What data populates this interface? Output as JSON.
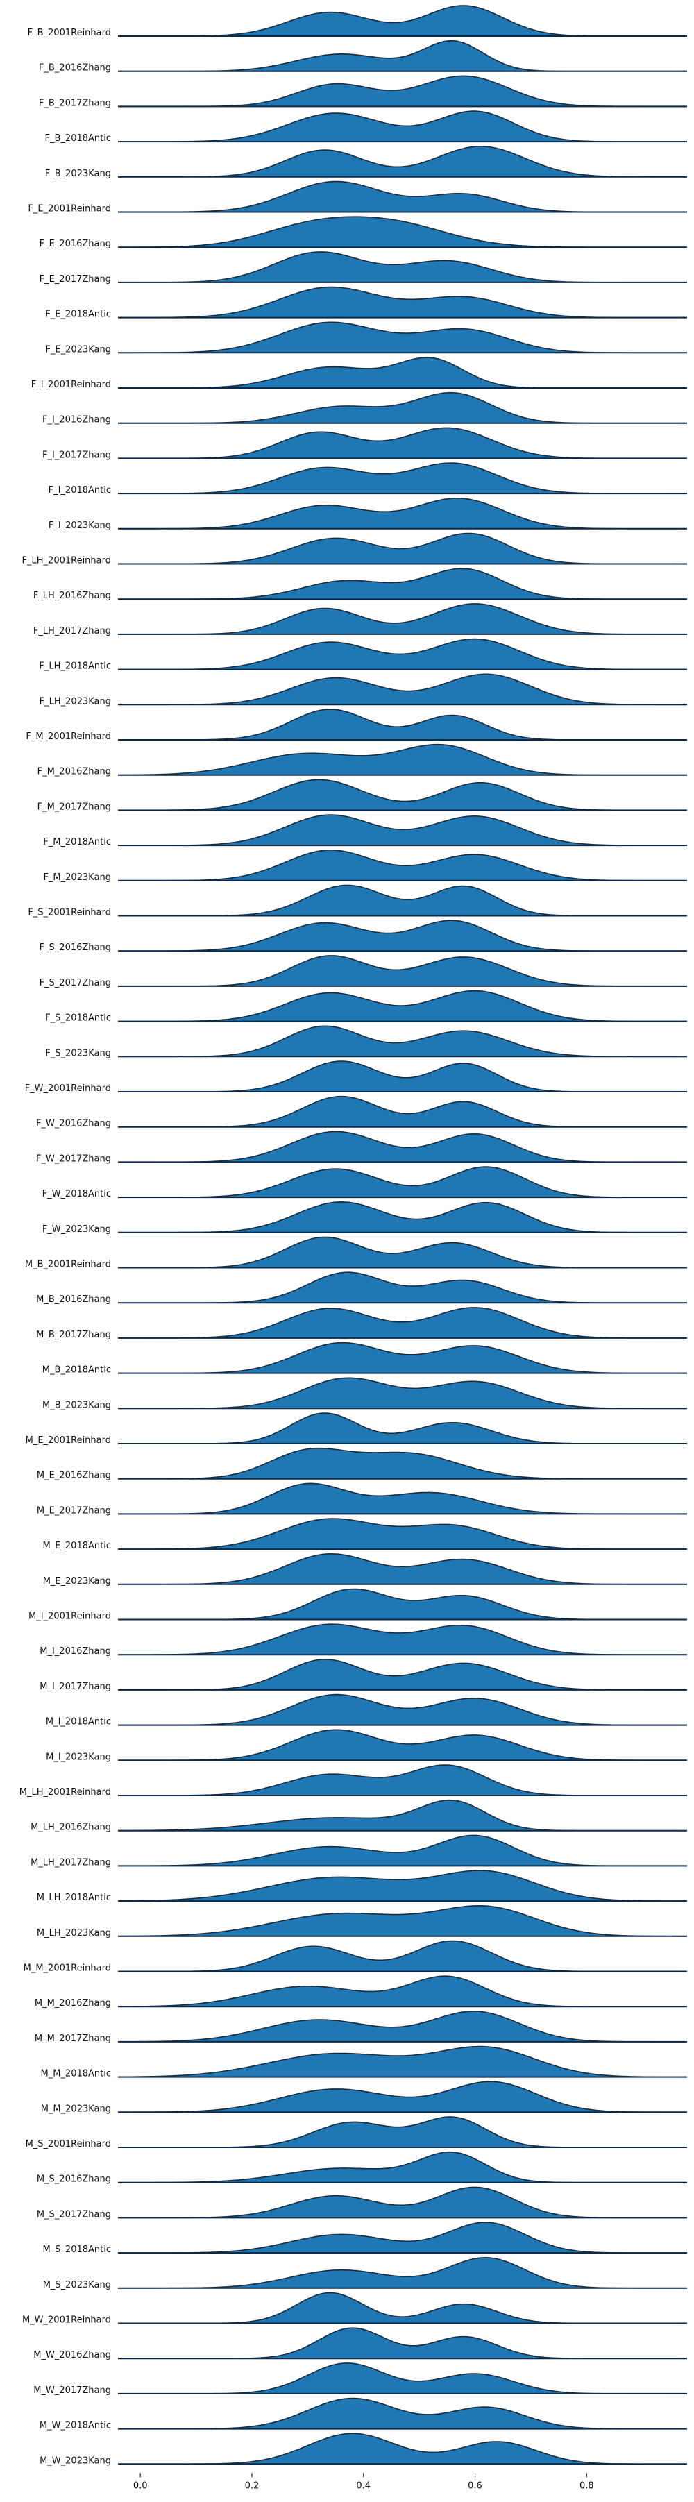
{
  "chart_data": {
    "type": "ridgeline",
    "xlim": [
      -0.04,
      0.98
    ],
    "x_ticks": [
      0.0,
      0.2,
      0.4,
      0.6,
      0.8
    ],
    "x_tick_labels": [
      "0.0",
      "0.2",
      "0.4",
      "0.6",
      "0.8"
    ],
    "grid": false,
    "colors": {
      "fill": "#1f77b4",
      "line": "#1c2b3a",
      "baseline": "#0b2a4a",
      "text": "#111111"
    },
    "series": [
      {
        "name": "F_B_2001Reinhard",
        "peaks": [
          [
            0.34,
            0.075,
            0.72
          ],
          [
            0.58,
            0.07,
            0.92
          ]
        ]
      },
      {
        "name": "F_B_2016Zhang",
        "peaks": [
          [
            0.36,
            0.08,
            0.55
          ],
          [
            0.56,
            0.055,
            0.95
          ]
        ]
      },
      {
        "name": "F_B_2017Zhang",
        "peaks": [
          [
            0.35,
            0.07,
            0.62
          ],
          [
            0.58,
            0.08,
            0.85
          ]
        ]
      },
      {
        "name": "F_B_2018Antic",
        "peaks": [
          [
            0.35,
            0.085,
            0.68
          ],
          [
            0.6,
            0.07,
            0.72
          ]
        ]
      },
      {
        "name": "F_B_2023Kang",
        "peaks": [
          [
            0.33,
            0.07,
            0.72
          ],
          [
            0.61,
            0.08,
            0.82
          ]
        ]
      },
      {
        "name": "F_E_2001Reinhard",
        "peaks": [
          [
            0.35,
            0.085,
            0.95
          ],
          [
            0.58,
            0.07,
            0.55
          ]
        ]
      },
      {
        "name": "F_E_2016Zhang",
        "peaks": [
          [
            0.3,
            0.09,
            0.55
          ],
          [
            0.45,
            0.1,
            0.7
          ]
        ]
      },
      {
        "name": "F_E_2017Zhang",
        "peaks": [
          [
            0.32,
            0.08,
            0.85
          ],
          [
            0.55,
            0.08,
            0.6
          ]
        ]
      },
      {
        "name": "F_E_2018Antic",
        "peaks": [
          [
            0.34,
            0.09,
            0.9
          ],
          [
            0.58,
            0.08,
            0.6
          ]
        ]
      },
      {
        "name": "F_E_2023Kang",
        "peaks": [
          [
            0.34,
            0.09,
            0.85
          ],
          [
            0.58,
            0.08,
            0.65
          ]
        ]
      },
      {
        "name": "F_I_2001Reinhard",
        "peaks": [
          [
            0.34,
            0.08,
            0.65
          ],
          [
            0.52,
            0.06,
            0.9
          ]
        ]
      },
      {
        "name": "F_I_2016Zhang",
        "peaks": [
          [
            0.36,
            0.08,
            0.5
          ],
          [
            0.56,
            0.07,
            0.9
          ]
        ]
      },
      {
        "name": "F_I_2017Zhang",
        "peaks": [
          [
            0.32,
            0.07,
            0.7
          ],
          [
            0.55,
            0.08,
            0.82
          ]
        ]
      },
      {
        "name": "F_I_2018Antic",
        "peaks": [
          [
            0.33,
            0.08,
            0.68
          ],
          [
            0.56,
            0.08,
            0.8
          ]
        ]
      },
      {
        "name": "F_I_2023Kang",
        "peaks": [
          [
            0.33,
            0.08,
            0.65
          ],
          [
            0.57,
            0.08,
            0.85
          ]
        ]
      },
      {
        "name": "F_LH_2001Reinhard",
        "peaks": [
          [
            0.35,
            0.08,
            0.72
          ],
          [
            0.59,
            0.07,
            0.85
          ]
        ]
      },
      {
        "name": "F_LH_2016Zhang",
        "peaks": [
          [
            0.37,
            0.08,
            0.55
          ],
          [
            0.58,
            0.07,
            0.9
          ]
        ]
      },
      {
        "name": "F_LH_2017Zhang",
        "peaks": [
          [
            0.33,
            0.07,
            0.72
          ],
          [
            0.6,
            0.08,
            0.85
          ]
        ]
      },
      {
        "name": "F_LH_2018Antic",
        "peaks": [
          [
            0.34,
            0.08,
            0.7
          ],
          [
            0.6,
            0.08,
            0.78
          ]
        ]
      },
      {
        "name": "F_LH_2023Kang",
        "peaks": [
          [
            0.35,
            0.08,
            0.72
          ],
          [
            0.62,
            0.08,
            0.82
          ]
        ]
      },
      {
        "name": "F_M_2001Reinhard",
        "peaks": [
          [
            0.34,
            0.07,
            0.9
          ],
          [
            0.56,
            0.06,
            0.72
          ]
        ]
      },
      {
        "name": "F_M_2016Zhang",
        "peaks": [
          [
            0.3,
            0.1,
            0.55
          ],
          [
            0.54,
            0.08,
            0.75
          ]
        ]
      },
      {
        "name": "F_M_2017Zhang",
        "peaks": [
          [
            0.32,
            0.08,
            0.8
          ],
          [
            0.61,
            0.07,
            0.72
          ]
        ]
      },
      {
        "name": "F_M_2018Antic",
        "peaks": [
          [
            0.34,
            0.08,
            0.75
          ],
          [
            0.6,
            0.08,
            0.72
          ]
        ]
      },
      {
        "name": "F_M_2023Kang",
        "peaks": [
          [
            0.34,
            0.08,
            0.82
          ],
          [
            0.6,
            0.08,
            0.7
          ]
        ]
      },
      {
        "name": "F_S_2001Reinhard",
        "peaks": [
          [
            0.37,
            0.07,
            0.88
          ],
          [
            0.58,
            0.06,
            0.85
          ]
        ]
      },
      {
        "name": "F_S_2016Zhang",
        "peaks": [
          [
            0.33,
            0.08,
            0.7
          ],
          [
            0.56,
            0.07,
            0.75
          ]
        ]
      },
      {
        "name": "F_S_2017Zhang",
        "peaks": [
          [
            0.34,
            0.07,
            0.78
          ],
          [
            0.58,
            0.08,
            0.75
          ]
        ]
      },
      {
        "name": "F_S_2018Antic",
        "peaks": [
          [
            0.34,
            0.08,
            0.7
          ],
          [
            0.6,
            0.08,
            0.75
          ]
        ]
      },
      {
        "name": "F_S_2023Kang",
        "peaks": [
          [
            0.33,
            0.07,
            0.85
          ],
          [
            0.58,
            0.08,
            0.72
          ]
        ]
      },
      {
        "name": "F_W_2001Reinhard",
        "peaks": [
          [
            0.36,
            0.07,
            0.92
          ],
          [
            0.58,
            0.06,
            0.85
          ]
        ]
      },
      {
        "name": "F_W_2016Zhang",
        "peaks": [
          [
            0.36,
            0.07,
            0.95
          ],
          [
            0.58,
            0.06,
            0.78
          ]
        ]
      },
      {
        "name": "F_W_2017Zhang",
        "peaks": [
          [
            0.35,
            0.08,
            0.85
          ],
          [
            0.6,
            0.07,
            0.78
          ]
        ]
      },
      {
        "name": "F_W_2018Antic",
        "peaks": [
          [
            0.35,
            0.08,
            0.7
          ],
          [
            0.62,
            0.07,
            0.75
          ]
        ]
      },
      {
        "name": "F_W_2023Kang",
        "peaks": [
          [
            0.36,
            0.08,
            0.8
          ],
          [
            0.62,
            0.07,
            0.78
          ]
        ]
      },
      {
        "name": "M_B_2001Reinhard",
        "peaks": [
          [
            0.33,
            0.07,
            0.92
          ],
          [
            0.56,
            0.07,
            0.75
          ]
        ]
      },
      {
        "name": "M_B_2016Zhang",
        "peaks": [
          [
            0.37,
            0.07,
            0.95
          ],
          [
            0.58,
            0.07,
            0.7
          ]
        ]
      },
      {
        "name": "M_B_2017Zhang",
        "peaks": [
          [
            0.34,
            0.08,
            0.7
          ],
          [
            0.6,
            0.08,
            0.72
          ]
        ]
      },
      {
        "name": "M_B_2018Antic",
        "peaks": [
          [
            0.36,
            0.08,
            0.8
          ],
          [
            0.6,
            0.08,
            0.72
          ]
        ]
      },
      {
        "name": "M_B_2023Kang",
        "peaks": [
          [
            0.37,
            0.08,
            0.85
          ],
          [
            0.6,
            0.08,
            0.75
          ]
        ]
      },
      {
        "name": "M_E_2001Reinhard",
        "peaks": [
          [
            0.33,
            0.06,
            0.9
          ],
          [
            0.56,
            0.07,
            0.62
          ]
        ]
      },
      {
        "name": "M_E_2016Zhang",
        "peaks": [
          [
            0.3,
            0.07,
            0.82
          ],
          [
            0.48,
            0.09,
            0.78
          ]
        ]
      },
      {
        "name": "M_E_2017Zhang",
        "peaks": [
          [
            0.3,
            0.07,
            0.9
          ],
          [
            0.52,
            0.09,
            0.65
          ]
        ]
      },
      {
        "name": "M_E_2018Antic",
        "peaks": [
          [
            0.34,
            0.09,
            0.85
          ],
          [
            0.56,
            0.08,
            0.65
          ]
        ]
      },
      {
        "name": "M_E_2023Kang",
        "peaks": [
          [
            0.34,
            0.08,
            0.88
          ],
          [
            0.58,
            0.08,
            0.72
          ]
        ]
      },
      {
        "name": "M_I_2001Reinhard",
        "peaks": [
          [
            0.38,
            0.07,
            0.92
          ],
          [
            0.58,
            0.07,
            0.72
          ]
        ]
      },
      {
        "name": "M_I_2016Zhang",
        "peaks": [
          [
            0.34,
            0.09,
            0.72
          ],
          [
            0.58,
            0.08,
            0.68
          ]
        ]
      },
      {
        "name": "M_I_2017Zhang",
        "peaks": [
          [
            0.33,
            0.07,
            0.82
          ],
          [
            0.58,
            0.08,
            0.72
          ]
        ]
      },
      {
        "name": "M_I_2018Antic",
        "peaks": [
          [
            0.35,
            0.08,
            0.82
          ],
          [
            0.6,
            0.08,
            0.72
          ]
        ]
      },
      {
        "name": "M_I_2023Kang",
        "peaks": [
          [
            0.35,
            0.08,
            0.85
          ],
          [
            0.6,
            0.08,
            0.7
          ]
        ]
      },
      {
        "name": "M_LH_2001Reinhard",
        "peaks": [
          [
            0.34,
            0.08,
            0.6
          ],
          [
            0.55,
            0.07,
            0.85
          ]
        ]
      },
      {
        "name": "M_LH_2016Zhang",
        "peaks": [
          [
            0.35,
            0.12,
            0.4
          ],
          [
            0.56,
            0.06,
            0.85
          ]
        ]
      },
      {
        "name": "M_LH_2017Zhang",
        "peaks": [
          [
            0.34,
            0.1,
            0.45
          ],
          [
            0.6,
            0.07,
            0.7
          ]
        ]
      },
      {
        "name": "M_LH_2018Antic",
        "peaks": [
          [
            0.35,
            0.12,
            0.5
          ],
          [
            0.62,
            0.09,
            0.6
          ]
        ]
      },
      {
        "name": "M_LH_2023Kang",
        "peaks": [
          [
            0.36,
            0.12,
            0.52
          ],
          [
            0.62,
            0.09,
            0.65
          ]
        ]
      },
      {
        "name": "M_M_2001Reinhard",
        "peaks": [
          [
            0.31,
            0.07,
            0.7
          ],
          [
            0.56,
            0.07,
            0.85
          ]
        ]
      },
      {
        "name": "M_M_2016Zhang",
        "peaks": [
          [
            0.3,
            0.1,
            0.55
          ],
          [
            0.55,
            0.07,
            0.8
          ]
        ]
      },
      {
        "name": "M_M_2017Zhang",
        "peaks": [
          [
            0.32,
            0.1,
            0.55
          ],
          [
            0.6,
            0.08,
            0.75
          ]
        ]
      },
      {
        "name": "M_M_2018Antic",
        "peaks": [
          [
            0.35,
            0.12,
            0.45
          ],
          [
            0.62,
            0.09,
            0.55
          ]
        ]
      },
      {
        "name": "M_M_2023Kang",
        "peaks": [
          [
            0.35,
            0.1,
            0.5
          ],
          [
            0.63,
            0.08,
            0.65
          ]
        ]
      },
      {
        "name": "M_S_2001Reinhard",
        "peaks": [
          [
            0.38,
            0.07,
            0.72
          ],
          [
            0.56,
            0.06,
            0.85
          ]
        ]
      },
      {
        "name": "M_S_2016Zhang",
        "peaks": [
          [
            0.36,
            0.1,
            0.45
          ],
          [
            0.56,
            0.06,
            0.9
          ]
        ]
      },
      {
        "name": "M_S_2017Zhang",
        "peaks": [
          [
            0.35,
            0.08,
            0.65
          ],
          [
            0.6,
            0.07,
            0.9
          ]
        ]
      },
      {
        "name": "M_S_2018Antic",
        "peaks": [
          [
            0.36,
            0.09,
            0.55
          ],
          [
            0.62,
            0.07,
            0.9
          ]
        ]
      },
      {
        "name": "M_S_2023Kang",
        "peaks": [
          [
            0.36,
            0.09,
            0.55
          ],
          [
            0.62,
            0.07,
            0.92
          ]
        ]
      },
      {
        "name": "M_W_2001Reinhard",
        "peaks": [
          [
            0.34,
            0.06,
            0.95
          ],
          [
            0.58,
            0.06,
            0.6
          ]
        ]
      },
      {
        "name": "M_W_2016Zhang",
        "peaks": [
          [
            0.38,
            0.06,
            0.95
          ],
          [
            0.58,
            0.06,
            0.68
          ]
        ]
      },
      {
        "name": "M_W_2017Zhang",
        "peaks": [
          [
            0.37,
            0.07,
            0.92
          ],
          [
            0.6,
            0.07,
            0.6
          ]
        ]
      },
      {
        "name": "M_W_2018Antic",
        "peaks": [
          [
            0.38,
            0.08,
            0.85
          ],
          [
            0.62,
            0.07,
            0.6
          ]
        ]
      },
      {
        "name": "M_W_2023Kang",
        "peaks": [
          [
            0.38,
            0.08,
            0.85
          ],
          [
            0.64,
            0.07,
            0.62
          ]
        ]
      }
    ]
  }
}
